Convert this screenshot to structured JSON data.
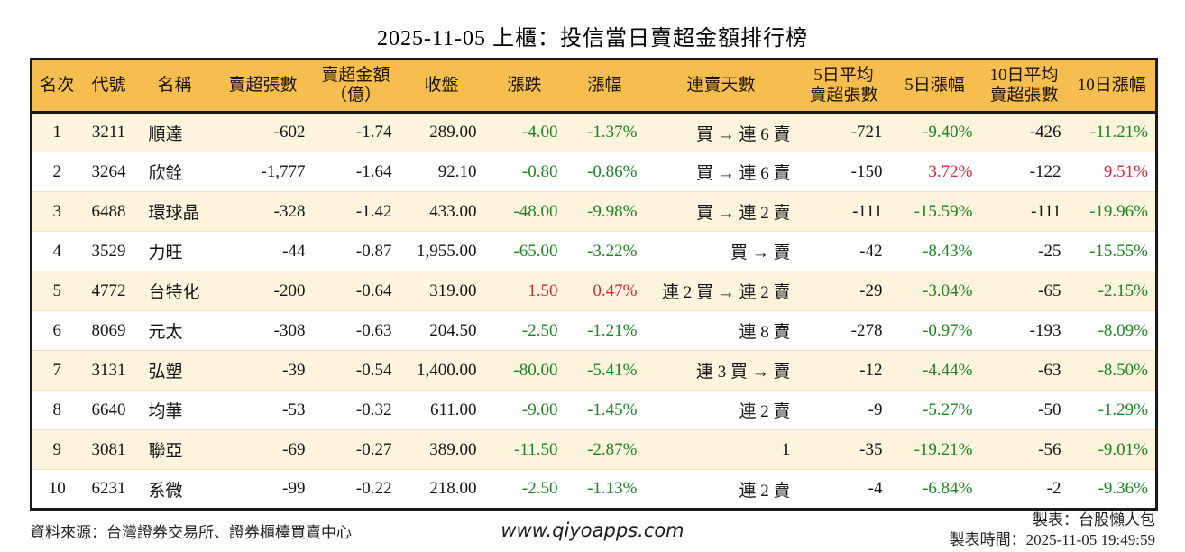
{
  "title": "2025-11-05 上櫃：投信當日賣超金額排行榜",
  "colors": {
    "header_bg": "#F6BE4F",
    "row_alt_bg": "#FCF4DC",
    "up_red": "#D22B3B",
    "down_green": "#1E8424",
    "border": "#1A1A1A"
  },
  "chart_data": {
    "type": "table",
    "title": "2025-11-05 上櫃：投信當日賣超金額排行榜",
    "columns": [
      {
        "key": "rank",
        "label": "名次",
        "align": "center",
        "colored": false
      },
      {
        "key": "code",
        "label": "代號",
        "align": "center",
        "colored": false
      },
      {
        "key": "name",
        "label": "名稱",
        "align": "left",
        "colored": false
      },
      {
        "key": "sell-volume",
        "label": "賣超張數",
        "align": "right",
        "colored": false
      },
      {
        "key": "sell-amount",
        "label": "賣超金額\n（億）",
        "align": "right",
        "colored": false
      },
      {
        "key": "close",
        "label": "收盤",
        "align": "right",
        "colored": false
      },
      {
        "key": "change",
        "label": "漲跌",
        "align": "right",
        "colored": true
      },
      {
        "key": "change-pct",
        "label": "漲幅",
        "align": "right",
        "colored": true
      },
      {
        "key": "sell-streak",
        "label": "連賣天數",
        "align": "right",
        "colored": false
      },
      {
        "key": "avg5-volume",
        "label": "5日平均\n賣超張數",
        "align": "right",
        "colored": false
      },
      {
        "key": "pct-5d",
        "label": "5日漲幅",
        "align": "right",
        "colored": true
      },
      {
        "key": "avg10-volume",
        "label": "10日平均\n賣超張數",
        "align": "right",
        "colored": false
      },
      {
        "key": "pct-10d",
        "label": "10日漲幅",
        "align": "right",
        "colored": true
      }
    ],
    "rows": [
      [
        "1",
        "3211",
        "順達",
        "-602",
        "-1.74",
        "289.00",
        "-4.00",
        "-1.37%",
        "買 → 連 6 賣",
        "-721",
        "-9.40%",
        "-426",
        "-11.21%"
      ],
      [
        "2",
        "3264",
        "欣銓",
        "-1,777",
        "-1.64",
        "92.10",
        "-0.80",
        "-0.86%",
        "買 → 連 6 賣",
        "-150",
        "3.72%",
        "-122",
        "9.51%"
      ],
      [
        "3",
        "6488",
        "環球晶",
        "-328",
        "-1.42",
        "433.00",
        "-48.00",
        "-9.98%",
        "買 → 連 2 賣",
        "-111",
        "-15.59%",
        "-111",
        "-19.96%"
      ],
      [
        "4",
        "3529",
        "力旺",
        "-44",
        "-0.87",
        "1,955.00",
        "-65.00",
        "-3.22%",
        "買 → 賣",
        "-42",
        "-8.43%",
        "-25",
        "-15.55%"
      ],
      [
        "5",
        "4772",
        "台特化",
        "-200",
        "-0.64",
        "319.00",
        "1.50",
        "0.47%",
        "連 2 買 → 連 2 賣",
        "-29",
        "-3.04%",
        "-65",
        "-2.15%"
      ],
      [
        "6",
        "8069",
        "元太",
        "-308",
        "-0.63",
        "204.50",
        "-2.50",
        "-1.21%",
        "連 8 賣",
        "-278",
        "-0.97%",
        "-193",
        "-8.09%"
      ],
      [
        "7",
        "3131",
        "弘塑",
        "-39",
        "-0.54",
        "1,400.00",
        "-80.00",
        "-5.41%",
        "連 3 買 → 賣",
        "-12",
        "-4.44%",
        "-63",
        "-8.50%"
      ],
      [
        "8",
        "6640",
        "均華",
        "-53",
        "-0.32",
        "611.00",
        "-9.00",
        "-1.45%",
        "連 2 賣",
        "-9",
        "-5.27%",
        "-50",
        "-1.29%"
      ],
      [
        "9",
        "3081",
        "聯亞",
        "-69",
        "-0.27",
        "389.00",
        "-11.50",
        "-2.87%",
        "1",
        "-35",
        "-19.21%",
        "-56",
        "-9.01%"
      ],
      [
        "10",
        "6231",
        "系微",
        "-99",
        "-0.22",
        "218.00",
        "-2.50",
        "-1.13%",
        "連 2 賣",
        "-4",
        "-6.84%",
        "-2",
        "-9.36%"
      ]
    ]
  },
  "footer": {
    "source": "資料來源：台灣證券交易所、證券櫃檯買賣中心",
    "website": "www.qiyoapps.com",
    "author": "製表：台股懶人包",
    "generated": "製表時間：2025-11-05 19:49:59"
  }
}
